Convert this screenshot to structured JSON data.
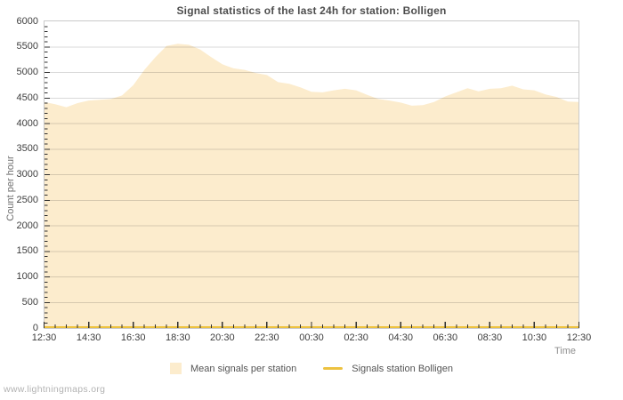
{
  "watermark": "www.lightningmaps.org",
  "chart_data": {
    "type": "area",
    "title": "Signal statistics of the last 24h for station: Bolligen",
    "xlabel": "Time",
    "ylabel": "Count per hour",
    "ylim": [
      0,
      6000
    ],
    "y_tick_step": 500,
    "y_minor_tick_step": 100,
    "grid": true,
    "legend_position": "bottom-center",
    "grid_border_color": "#c9c9c9",
    "x_tick_labels": [
      "12:30",
      "14:30",
      "16:30",
      "18:30",
      "20:30",
      "22:30",
      "00:30",
      "02:30",
      "04:30",
      "06:30",
      "08:30",
      "10:30",
      "12:30"
    ],
    "x": [
      "12:30",
      "13:00",
      "13:30",
      "14:00",
      "14:30",
      "15:00",
      "15:30",
      "16:00",
      "16:30",
      "17:00",
      "17:30",
      "18:00",
      "18:30",
      "19:00",
      "19:30",
      "20:00",
      "20:30",
      "21:00",
      "21:30",
      "22:00",
      "22:30",
      "23:00",
      "23:30",
      "00:00",
      "00:30",
      "01:00",
      "01:30",
      "02:00",
      "02:30",
      "03:00",
      "03:30",
      "04:00",
      "04:30",
      "05:00",
      "05:30",
      "06:00",
      "06:30",
      "07:00",
      "07:30",
      "08:00",
      "08:30",
      "09:00",
      "09:30",
      "10:00",
      "10:30",
      "11:00",
      "11:30",
      "12:00",
      "12:30"
    ],
    "series": [
      {
        "name": "Mean signals per station",
        "type": "area",
        "color": "#fceccd",
        "values": [
          4420,
          4380,
          4320,
          4400,
          4450,
          4465,
          4480,
          4550,
          4750,
          5050,
          5300,
          5520,
          5560,
          5540,
          5450,
          5300,
          5160,
          5080,
          5050,
          4990,
          4950,
          4810,
          4780,
          4710,
          4620,
          4610,
          4650,
          4680,
          4650,
          4560,
          4480,
          4450,
          4410,
          4350,
          4360,
          4420,
          4530,
          4610,
          4690,
          4630,
          4680,
          4690,
          4740,
          4670,
          4650,
          4570,
          4520,
          4430,
          4420
        ]
      },
      {
        "name": "Signals station Bolligen",
        "type": "line",
        "color": "#edc240",
        "values": [
          0,
          0,
          0,
          0,
          0,
          0,
          0,
          0,
          0,
          0,
          0,
          0,
          0,
          0,
          0,
          0,
          0,
          0,
          0,
          0,
          0,
          0,
          0,
          0,
          0,
          0,
          0,
          0,
          0,
          0,
          0,
          0,
          0,
          0,
          0,
          0,
          0,
          0,
          0,
          0,
          0,
          0,
          0,
          0,
          0,
          0,
          0,
          0,
          0
        ]
      }
    ]
  }
}
